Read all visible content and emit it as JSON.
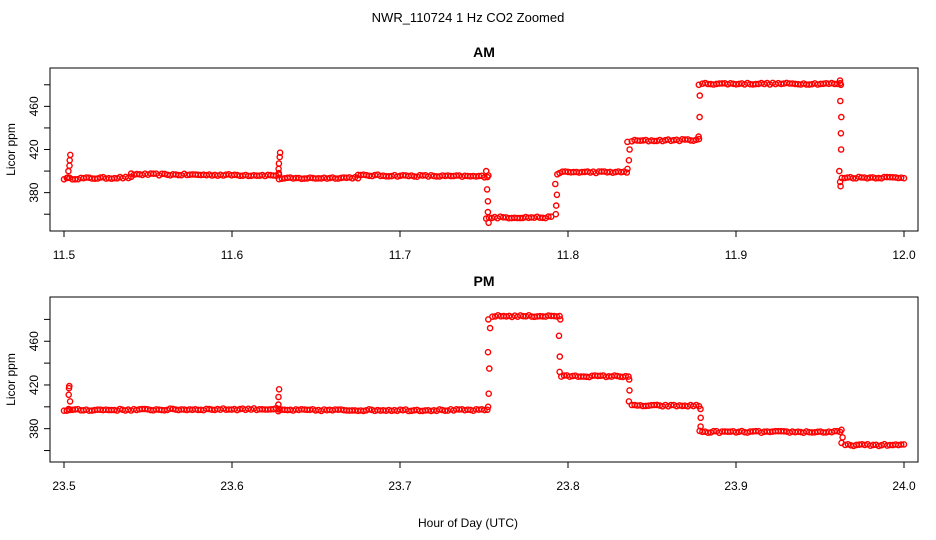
{
  "figure": {
    "title": "NWR_110724  1 Hz CO2 Zoomed",
    "xlabel": "Hour of Day (UTC)"
  },
  "chart_data": [
    {
      "type": "scatter",
      "title": "AM",
      "ylabel": "Licor ppm",
      "xlim": [
        11.5,
        12.0
      ],
      "ylim": [
        350,
        490
      ],
      "xticks": [
        "11.5",
        "11.6",
        "11.7",
        "11.8",
        "11.9",
        "12.0"
      ],
      "yticks": [
        "380",
        "420",
        "460"
      ],
      "color": "#ff0000",
      "segments": [
        {
          "x": [
            11.5,
            11.54
          ],
          "y": [
            393,
            394
          ]
        },
        {
          "x": [
            11.54,
            11.628
          ],
          "y": [
            397,
            396
          ]
        },
        {
          "x": [
            11.628,
            11.675
          ],
          "y": [
            393,
            394
          ]
        },
        {
          "x": [
            11.675,
            11.752
          ],
          "y": [
            396,
            395
          ]
        },
        {
          "x": [
            11.753,
            11.79
          ],
          "y": [
            357,
            357
          ]
        },
        {
          "x": [
            11.795,
            11.835
          ],
          "y": [
            399,
            399
          ]
        },
        {
          "x": [
            11.838,
            11.878
          ],
          "y": [
            428,
            429
          ]
        },
        {
          "x": [
            11.88,
            11.962
          ],
          "y": [
            481,
            481
          ]
        },
        {
          "x": [
            11.963,
            12.0
          ],
          "y": [
            394,
            394
          ]
        }
      ],
      "spikes": [
        {
          "x": 11.503,
          "y": [
            394,
            400,
            405,
            410,
            415
          ]
        },
        {
          "x": 11.628,
          "y": [
            398,
            402,
            407,
            413,
            417
          ]
        },
        {
          "x": 11.752,
          "y": [
            352,
            356,
            362,
            372,
            383,
            396,
            400
          ]
        },
        {
          "x": 11.793,
          "y": [
            360,
            368,
            378,
            388,
            397
          ]
        },
        {
          "x": 11.836,
          "y": [
            402,
            410,
            420,
            427
          ]
        },
        {
          "x": 11.878,
          "y": [
            432,
            450,
            470,
            480
          ]
        },
        {
          "x": 11.962,
          "y": [
            484,
            480,
            465,
            450,
            435,
            420,
            400,
            390,
            386
          ]
        }
      ]
    },
    {
      "type": "scatter",
      "title": "PM",
      "ylabel": "Licor ppm",
      "xlim": [
        23.5,
        24.0
      ],
      "ylim": [
        355,
        495
      ],
      "xticks": [
        "23.5",
        "23.6",
        "23.7",
        "23.8",
        "23.9",
        "24.0"
      ],
      "yticks": [
        "380",
        "420",
        "460"
      ],
      "color": "#ff0000",
      "segments": [
        {
          "x": [
            23.5,
            23.628
          ],
          "y": [
            397,
            398
          ]
        },
        {
          "x": [
            23.628,
            23.752
          ],
          "y": [
            397,
            397
          ]
        },
        {
          "x": [
            23.755,
            23.795
          ],
          "y": [
            483,
            483
          ]
        },
        {
          "x": [
            23.796,
            23.836
          ],
          "y": [
            428,
            428
          ]
        },
        {
          "x": [
            23.838,
            23.878
          ],
          "y": [
            401,
            401
          ]
        },
        {
          "x": [
            23.88,
            23.962
          ],
          "y": [
            377,
            377
          ]
        },
        {
          "x": [
            23.965,
            24.0
          ],
          "y": [
            365,
            365
          ]
        }
      ],
      "spikes": [
        {
          "x": 23.503,
          "y": [
            398,
            405,
            411,
            417,
            419
          ]
        },
        {
          "x": 23.628,
          "y": [
            396,
            402,
            409,
            416
          ]
        },
        {
          "x": 23.753,
          "y": [
            400,
            412,
            435,
            450,
            472,
            480
          ]
        },
        {
          "x": 23.795,
          "y": [
            480,
            465,
            446,
            432
          ]
        },
        {
          "x": 23.837,
          "y": [
            425,
            415,
            405
          ]
        },
        {
          "x": 23.879,
          "y": [
            398,
            390,
            382,
            378
          ]
        },
        {
          "x": 23.963,
          "y": [
            379,
            372,
            367
          ]
        }
      ]
    }
  ]
}
